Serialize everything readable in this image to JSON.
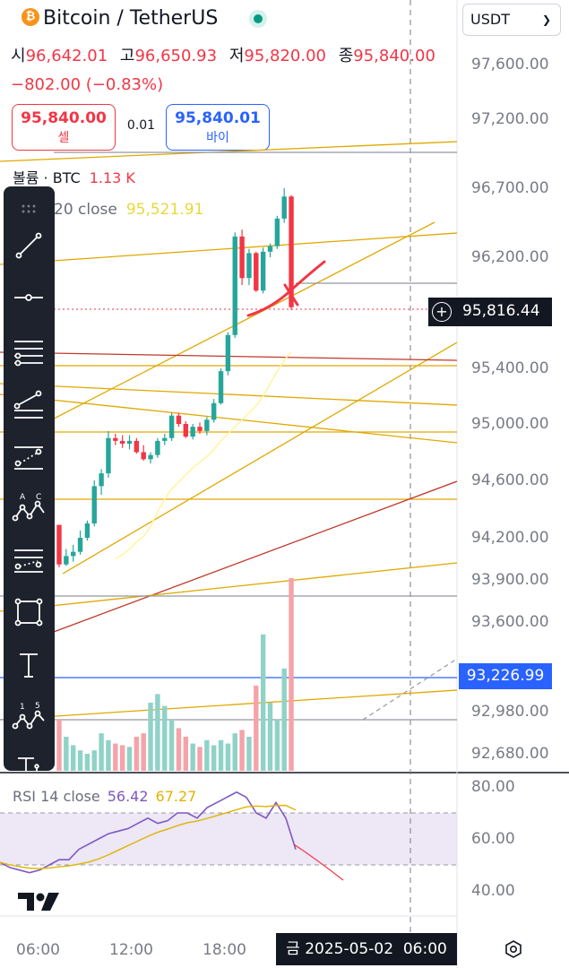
{
  "header": {
    "title": "Bitcoin / TetherUS",
    "currency": "USDT"
  },
  "ohlc": {
    "open_label": "시",
    "open": "96,642.01",
    "high_label": "고",
    "high": "96,650.93",
    "low_label": "저",
    "low": "95,820.00",
    "close_label": "종",
    "close": "95,840.00"
  },
  "change": "−802.00 (−0.83%)",
  "trade": {
    "sell_price": "95,840.00",
    "sell_label": "셀",
    "spread": "0.01",
    "buy_price": "95,840.01",
    "buy_label": "바이"
  },
  "legends": {
    "volume_label": "볼륨 · BTC",
    "volume_value": "1.13 K",
    "ma_label": "20 close",
    "ma_value": "95,521.91",
    "rsi_label": "RSI 14 close",
    "rsi_value1": "56.42",
    "rsi_value2": "67.27"
  },
  "price_axis": [
    "97,600.00",
    "97,200.00",
    "96,700.00",
    "96,200.00",
    "95,400.00",
    "95,000.00",
    "94,600.00",
    "94,200.00",
    "93,900.00",
    "93,600.00",
    "92,980.00",
    "92,680.00"
  ],
  "rsi_axis": [
    "80.00",
    "60.00",
    "40.00"
  ],
  "current_price": "95,816.44",
  "marked_price": "93,226.99",
  "time_axis": [
    "06:00",
    "12:00",
    "18:00",
    "06:00"
  ],
  "cursor_date": "금 2025-05-02",
  "colors": {
    "up": "#26a69a",
    "down": "#f23645",
    "accent": "#2962ff",
    "line": "#e0a800"
  },
  "toolbar_icons": [
    "trendline-icon",
    "horizontal-ray-icon",
    "parallel-channel-icon",
    "pitchfork-icon",
    "fib-retracement-icon",
    "abcd-pattern-icon",
    "gann-fan-icon",
    "rectangle-icon",
    "text-icon",
    "elliott-wave-icon",
    "anchored-text-icon"
  ],
  "chart_data": {
    "type": "candlestick",
    "ohlc": [
      [
        94290,
        94290,
        93990,
        94010
      ],
      [
        94010,
        94120,
        94000,
        94070
      ],
      [
        94070,
        94150,
        94030,
        94100
      ],
      [
        94100,
        94250,
        94080,
        94200
      ],
      [
        94200,
        94320,
        94180,
        94300
      ],
      [
        94300,
        94600,
        94280,
        94560
      ],
      [
        94560,
        94680,
        94500,
        94650
      ],
      [
        94650,
        94950,
        94620,
        94900
      ],
      [
        94900,
        94930,
        94850,
        94880
      ],
      [
        94880,
        94920,
        94830,
        94860
      ],
      [
        94860,
        94920,
        94820,
        94880
      ],
      [
        94880,
        94900,
        94790,
        94800
      ],
      [
        94800,
        94850,
        94740,
        94750
      ],
      [
        94750,
        94800,
        94720,
        94780
      ],
      [
        94780,
        94900,
        94760,
        94880
      ],
      [
        94880,
        94930,
        94850,
        94900
      ],
      [
        94900,
        95080,
        94880,
        95060
      ],
      [
        95060,
        95080,
        94980,
        95000
      ],
      [
        95000,
        95020,
        94900,
        94910
      ],
      [
        94910,
        95000,
        94890,
        94980
      ],
      [
        94980,
        95010,
        94930,
        94950
      ],
      [
        94950,
        95050,
        94920,
        95030
      ],
      [
        95030,
        95180,
        95010,
        95150
      ],
      [
        95150,
        95400,
        95140,
        95380
      ],
      [
        95380,
        95660,
        95350,
        95640
      ],
      [
        95640,
        96380,
        95620,
        96350
      ],
      [
        96350,
        96400,
        96000,
        96050
      ],
      [
        96050,
        96260,
        96000,
        96230
      ],
      [
        96230,
        96240,
        95950,
        95960
      ],
      [
        95960,
        96270,
        95940,
        96240
      ],
      [
        96240,
        96300,
        96200,
        96280
      ],
      [
        96280,
        96500,
        96260,
        96480
      ],
      [
        96480,
        96700,
        96450,
        96640
      ],
      [
        96640,
        96650,
        95820,
        95840
      ]
    ],
    "volume": [
      300,
      200,
      150,
      120,
      100,
      120,
      220,
      180,
      160,
      150,
      140,
      200,
      220,
      400,
      450,
      380,
      300,
      250,
      200,
      160,
      140,
      180,
      150,
      180,
      160,
      220,
      240,
      200,
      500,
      800,
      400,
      300,
      600,
      1130
    ],
    "rsi": [
      51,
      49,
      48,
      47,
      48,
      50,
      52,
      52,
      56,
      58,
      60,
      62,
      63,
      64,
      66,
      68,
      66,
      67,
      70,
      70,
      68,
      72,
      74,
      76,
      78,
      76,
      70,
      68,
      74,
      68,
      56
    ],
    "ma20": [
      94050,
      94080,
      94120,
      94170,
      94210,
      94280,
      94380,
      94470,
      94540,
      94590,
      94640,
      94690,
      94730,
      94770,
      94820,
      94880,
      94930,
      94980,
      95030,
      95080,
      95130,
      95200,
      95290,
      95380,
      95460,
      95521
    ]
  }
}
